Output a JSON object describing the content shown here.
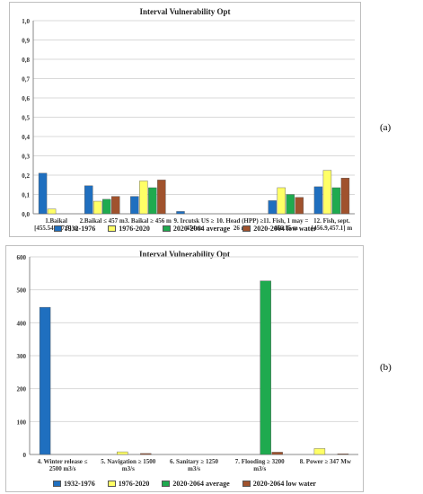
{
  "panels": {
    "a": {
      "tag": "(a)"
    },
    "b": {
      "tag": "(b)"
    }
  },
  "colors": [
    "#1f6fbf",
    "#ffff66",
    "#1faa4f",
    "#a0522d"
  ],
  "chart_data": [
    {
      "type": "bar",
      "title": "Interval Vulnerability Opt",
      "ylim": [
        0,
        1.0
      ],
      "yticks": [
        "0,0",
        "0,1",
        "0,2",
        "0,3",
        "0,4",
        "0,5",
        "0,6",
        "0,7",
        "0,8",
        "0,9",
        "1,0"
      ],
      "ytick_values": [
        0,
        0.1,
        0.2,
        0.3,
        0.4,
        0.5,
        0.6,
        0.7,
        0.8,
        0.9,
        1.0
      ],
      "grid": true,
      "categories": [
        "1.Baikal [455.54.457.5] m",
        "2.Baikal ≤ 457 m",
        "3. Baikal ≥ 456 m",
        "9. Ircutsk US ≥ 454 m",
        "10. Head (HPP) ≥ 26 m",
        "11. Fish, 1 may = 456.15 m",
        "12. Fish, sept. [456.9,457.1] m"
      ],
      "series": [
        {
          "name": "1932-1976",
          "values": [
            0.21,
            0.145,
            0.09,
            0.012,
            0,
            0.068,
            0.14
          ]
        },
        {
          "name": "1976-2020",
          "values": [
            0.025,
            0.065,
            0.17,
            0,
            0,
            0.135,
            0.225
          ]
        },
        {
          "name": "2020-2064  average",
          "values": [
            0,
            0.075,
            0.135,
            0,
            0,
            0.1,
            0.135
          ]
        },
        {
          "name": "2020-2064  low water",
          "values": [
            0,
            0.09,
            0.175,
            0,
            0,
            0.085,
            0.185
          ]
        }
      ],
      "legend": "bottom"
    },
    {
      "type": "bar",
      "title": "Interval Vulnerability Opt",
      "ylim": [
        0,
        600
      ],
      "yticks": [
        "0",
        "100",
        "200",
        "300",
        "400",
        "500",
        "600"
      ],
      "ytick_values": [
        0,
        100,
        200,
        300,
        400,
        500,
        600
      ],
      "grid": true,
      "categories": [
        "4. Winter release ≤ 2500 m3/s",
        "5. Navigation ≥ 1500 m3/s",
        "6. Sanitary ≥ 1250 m3/s",
        "7. Flooding ≥ 3200 m3/s",
        "8. Power ≥ 347 Mw"
      ],
      "series": [
        {
          "name": "1932-1976",
          "values": [
            447,
            0,
            0,
            0,
            0
          ]
        },
        {
          "name": "1976-2020",
          "values": [
            0,
            8,
            0,
            0,
            18
          ]
        },
        {
          "name": "2020-2064  average",
          "values": [
            0,
            0,
            0,
            527,
            0
          ]
        },
        {
          "name": "2020-2064  low water",
          "values": [
            0,
            3,
            0,
            7,
            2
          ]
        }
      ],
      "legend": "bottom"
    }
  ]
}
